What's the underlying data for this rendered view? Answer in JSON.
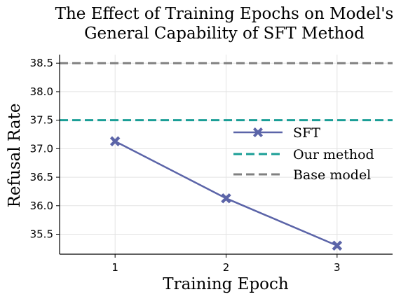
{
  "chart_data": {
    "type": "line",
    "title": [
      "The Effect of Training Epochs on Model's",
      "General Capability of SFT Method"
    ],
    "xlabel": "Training Epoch",
    "ylabel": "Refusal Rate",
    "x": [
      1,
      2,
      3
    ],
    "xticks": [
      "1",
      "2",
      "3"
    ],
    "xlim": [
      0.5,
      3.5
    ],
    "ylim": [
      35.15,
      38.65
    ],
    "yticks": [
      "35.5",
      "36.0",
      "36.5",
      "37.0",
      "37.5",
      "38.0",
      "38.5"
    ],
    "series": [
      {
        "name": "SFT",
        "values": [
          37.13,
          36.13,
          35.3
        ],
        "color": "#5b64a8",
        "marker": "x-filled",
        "style": "solid"
      }
    ],
    "reference_lines": [
      {
        "name": "Our method",
        "value": 37.5,
        "color": "#1a9e96",
        "style": "dashed"
      },
      {
        "name": "Base model",
        "value": 38.5,
        "color": "#808080",
        "style": "dashed"
      }
    ],
    "legend": {
      "position": "center-right",
      "entries": [
        "SFT",
        "Our method",
        "Base model"
      ]
    },
    "grid": true
  }
}
